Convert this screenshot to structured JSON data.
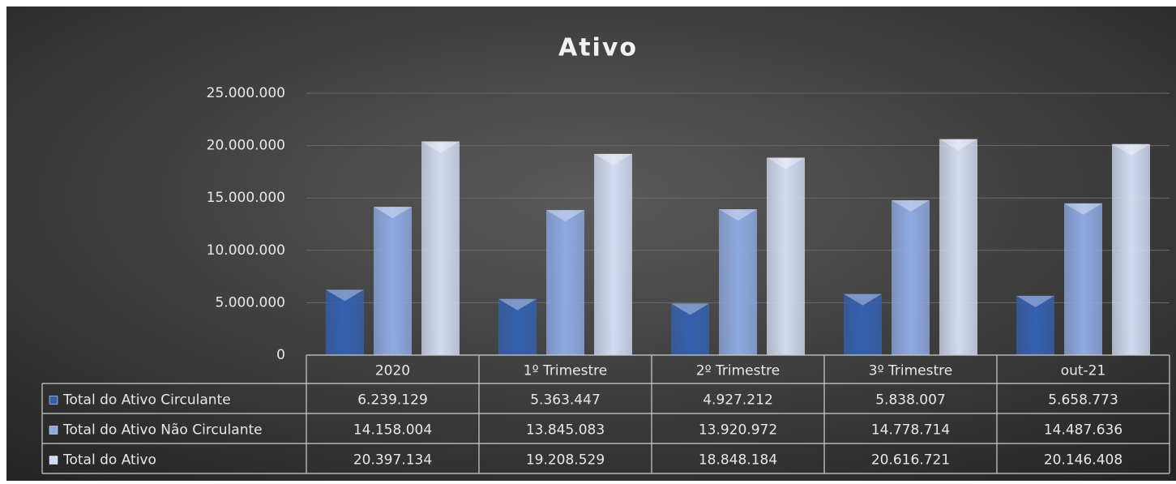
{
  "chart_data": {
    "type": "bar",
    "title": "Ativo",
    "categories": [
      "2020",
      "1º Trimestre",
      "2º Trimestre",
      "3º Trimestre",
      "out-21"
    ],
    "series": [
      {
        "name": "Total do Ativo Circulante",
        "color": "#3560b0",
        "values": [
          6239129,
          5363447,
          4927212,
          5838007,
          5658773
        ],
        "value_labels": [
          "6.239.129",
          "5.363.447",
          "4.927.212",
          "5.838.007",
          "5.658.773"
        ]
      },
      {
        "name": "Total do Ativo Não Circulante",
        "color": "#8fa9e2",
        "values": [
          14158004,
          13845083,
          13920972,
          14778714,
          14487636
        ],
        "value_labels": [
          "14.158.004",
          "13.845.083",
          "13.920.972",
          "14.778.714",
          "14.487.636"
        ]
      },
      {
        "name": "Total do Ativo",
        "color": "#d3dbf2",
        "values": [
          20397134,
          19208529,
          18848184,
          20616721,
          20146408
        ],
        "value_labels": [
          "20.397.134",
          "19.208.529",
          "18.848.184",
          "20.616.721",
          "20.146.408"
        ]
      }
    ],
    "ylim": [
      0,
      25000000
    ],
    "yticks": [
      0,
      {
        "value": 5000000,
        "label": "5.000.000"
      },
      {
        "value": 10000000,
        "label": "10.000.000"
      },
      {
        "value": 15000000,
        "label": "15.000.000"
      },
      {
        "value": 20000000,
        "label": "20.000.000"
      },
      {
        "value": 25000000,
        "label": "25.000.000"
      }
    ],
    "grid": true
  }
}
